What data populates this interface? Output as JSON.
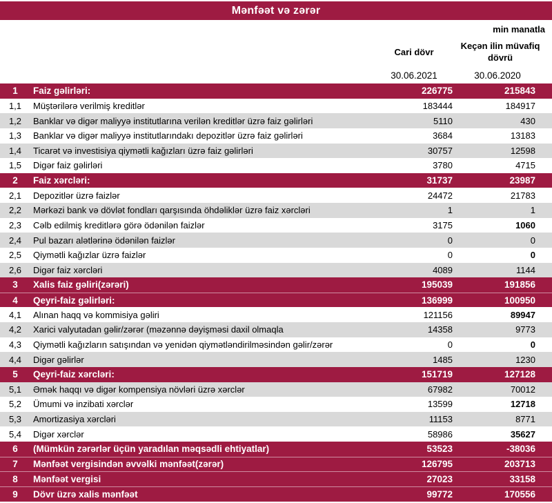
{
  "title": "Mənfəət və zərər",
  "unit_note": "min manatla",
  "columns": {
    "current_label": "Cari dövr",
    "previous_label": "Keçən ilin müvafiq dövrü",
    "current_date": "30.06.2021",
    "previous_date": "30.06.2020"
  },
  "colors": {
    "section_bg": "#9E1B42",
    "alt_row_bg": "#D9D9D9",
    "section_text": "#FFFFFF",
    "body_text": "#000000"
  },
  "rows": [
    {
      "num": "1",
      "label": "Faiz gəlirləri:",
      "current": "226775",
      "previous": "215843",
      "type": "section"
    },
    {
      "num": "1,1",
      "label": "Müştərilərə verilmiş kreditlər",
      "current": "183444",
      "previous": "184917",
      "type": "item",
      "shade": "white"
    },
    {
      "num": "1,2",
      "label": "Banklar və digər maliyyə institutlarına verilən kreditlər üzrə faiz gəlirləri",
      "current": "5110",
      "previous": "430",
      "type": "item",
      "shade": "gray"
    },
    {
      "num": "1,3",
      "label": "Banklar və digər maliyyə institutlarındakı depozitlər üzrə faiz gəlirləri",
      "current": "3684",
      "previous": "13183",
      "type": "item",
      "shade": "white"
    },
    {
      "num": "1,4",
      "label": "Ticarət və investisiya qiymətli kağızları üzrə faiz gəlirləri",
      "current": "30757",
      "previous": "12598",
      "type": "item",
      "shade": "gray"
    },
    {
      "num": "1,5",
      "label": "Digər faiz gəlirləri",
      "current": "3780",
      "previous": "4715",
      "type": "item",
      "shade": "white"
    },
    {
      "num": "2",
      "label": "Faiz xərcləri:",
      "current": "31737",
      "previous": "23987",
      "type": "section"
    },
    {
      "num": "2,1",
      "label": "Depozitlər üzrə faizlər",
      "current": "24472",
      "previous": "21783",
      "type": "item",
      "shade": "white"
    },
    {
      "num": "2,2",
      "label": "Mərkəzi bank və dövlət fondları qarşısında öhdəliklər üzrə faiz xərcləri",
      "current": "1",
      "previous": "1",
      "type": "item",
      "shade": "gray"
    },
    {
      "num": "2,3",
      "label": "Cəlb edilmiş kreditlərə görə ödənilən faizlər",
      "current": "3175",
      "previous": "1060",
      "type": "item",
      "shade": "white",
      "previous_bold": true
    },
    {
      "num": "2,4",
      "label": "Pul bazarı alətlərinə ödənilən faizlər",
      "current": "0",
      "previous": "0",
      "type": "item",
      "shade": "gray"
    },
    {
      "num": "2,5",
      "label": "Qiymətli kağızlar üzrə faizlər",
      "current": "0",
      "previous": "0",
      "type": "item",
      "shade": "white",
      "previous_bold": true
    },
    {
      "num": "2,6",
      "label": "Digər faiz xərcləri",
      "current": "4089",
      "previous": "1144",
      "type": "item",
      "shade": "gray"
    },
    {
      "num": "3",
      "label": "Xalis faiz gəliri(zərəri)",
      "current": "195039",
      "previous": "191856",
      "type": "section"
    },
    {
      "num": "4",
      "label": "Qeyri-faiz gəlirləri:",
      "current": "136999",
      "previous": "100950",
      "type": "section"
    },
    {
      "num": "4,1",
      "label": "Alınan haqq və kommisiya gəliri",
      "current": "121156",
      "previous": "89947",
      "type": "item",
      "shade": "white",
      "previous_bold": true
    },
    {
      "num": "4,2",
      "label": "Xarici valyutadan gəlir/zərər (məzənnə dəyişməsi daxil olmaqla",
      "current": "14358",
      "previous": "9773",
      "type": "item",
      "shade": "gray"
    },
    {
      "num": "4,3",
      "label": "Qiymətli kağızların satışından və yenidən qiymətləndirilməsindən gəlir/zərər",
      "current": "0",
      "previous": "0",
      "type": "item",
      "shade": "white",
      "previous_bold": true
    },
    {
      "num": "4,4",
      "label": "Digər gəlirlər",
      "current": "1485",
      "previous": "1230",
      "type": "item",
      "shade": "gray"
    },
    {
      "num": "5",
      "label": "Qeyri-faiz xərcləri:",
      "current": "151719",
      "previous": "127128",
      "type": "section"
    },
    {
      "num": "5,1",
      "label": "Əmək haqqı və digər kompensiya növləri üzrə xərclər",
      "current": "67982",
      "previous": "70012",
      "type": "item",
      "shade": "gray"
    },
    {
      "num": "5,2",
      "label": "Ümumi və inzibati xərclər",
      "current": "13599",
      "previous": "12718",
      "type": "item",
      "shade": "white",
      "previous_bold": true
    },
    {
      "num": "5,3",
      "label": "Amortizasiya xərcləri",
      "current": "11153",
      "previous": "8771",
      "type": "item",
      "shade": "gray"
    },
    {
      "num": "5,4",
      "label": "Digər xərclər",
      "current": "58986",
      "previous": "35627",
      "type": "item",
      "shade": "white",
      "previous_bold": true
    },
    {
      "num": "6",
      "label": "(Mümkün zərərlər üçün yaradılan məqsədli ehtiyatlar)",
      "current": "53523",
      "previous": "-38036",
      "type": "section"
    },
    {
      "num": "7",
      "label": "Mənfəət vergisindən əvvəlki mənfəət(zərər)",
      "current": "126795",
      "previous": "203713",
      "type": "section"
    },
    {
      "num": "8",
      "label": "Mənfəət vergisi",
      "current": "27023",
      "previous": "33158",
      "type": "section"
    },
    {
      "num": "9",
      "label": "Dövr üzrə xalis mənfəət",
      "current": "99772",
      "previous": "170556",
      "type": "section"
    }
  ]
}
